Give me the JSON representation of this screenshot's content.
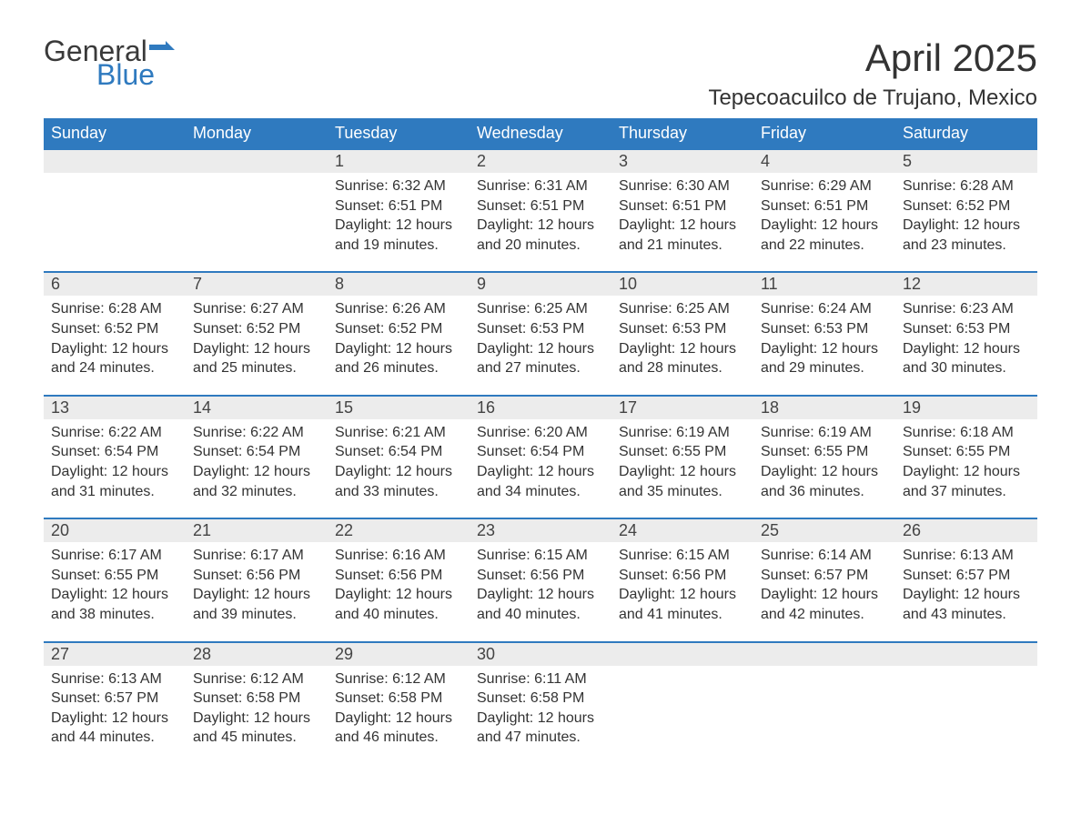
{
  "logo": {
    "word1": "General",
    "word2": "Blue",
    "brand_color": "#2f7abf"
  },
  "title": "April 2025",
  "location": "Tepecoacuilco de Trujano, Mexico",
  "colors": {
    "header_bg": "#2f7abf",
    "header_text": "#ffffff",
    "daynum_bg": "#ececec",
    "row_border": "#2f7abf",
    "text": "#333333"
  },
  "fonts": {
    "title_size_pt": 32,
    "location_size_pt": 18,
    "header_size_pt": 14,
    "body_size_pt": 12
  },
  "days_of_week": [
    "Sunday",
    "Monday",
    "Tuesday",
    "Wednesday",
    "Thursday",
    "Friday",
    "Saturday"
  ],
  "weeks": [
    [
      null,
      null,
      {
        "n": "1",
        "sunrise": "6:32 AM",
        "sunset": "6:51 PM",
        "daylight": "12 hours and 19 minutes."
      },
      {
        "n": "2",
        "sunrise": "6:31 AM",
        "sunset": "6:51 PM",
        "daylight": "12 hours and 20 minutes."
      },
      {
        "n": "3",
        "sunrise": "6:30 AM",
        "sunset": "6:51 PM",
        "daylight": "12 hours and 21 minutes."
      },
      {
        "n": "4",
        "sunrise": "6:29 AM",
        "sunset": "6:51 PM",
        "daylight": "12 hours and 22 minutes."
      },
      {
        "n": "5",
        "sunrise": "6:28 AM",
        "sunset": "6:52 PM",
        "daylight": "12 hours and 23 minutes."
      }
    ],
    [
      {
        "n": "6",
        "sunrise": "6:28 AM",
        "sunset": "6:52 PM",
        "daylight": "12 hours and 24 minutes."
      },
      {
        "n": "7",
        "sunrise": "6:27 AM",
        "sunset": "6:52 PM",
        "daylight": "12 hours and 25 minutes."
      },
      {
        "n": "8",
        "sunrise": "6:26 AM",
        "sunset": "6:52 PM",
        "daylight": "12 hours and 26 minutes."
      },
      {
        "n": "9",
        "sunrise": "6:25 AM",
        "sunset": "6:53 PM",
        "daylight": "12 hours and 27 minutes."
      },
      {
        "n": "10",
        "sunrise": "6:25 AM",
        "sunset": "6:53 PM",
        "daylight": "12 hours and 28 minutes."
      },
      {
        "n": "11",
        "sunrise": "6:24 AM",
        "sunset": "6:53 PM",
        "daylight": "12 hours and 29 minutes."
      },
      {
        "n": "12",
        "sunrise": "6:23 AM",
        "sunset": "6:53 PM",
        "daylight": "12 hours and 30 minutes."
      }
    ],
    [
      {
        "n": "13",
        "sunrise": "6:22 AM",
        "sunset": "6:54 PM",
        "daylight": "12 hours and 31 minutes."
      },
      {
        "n": "14",
        "sunrise": "6:22 AM",
        "sunset": "6:54 PM",
        "daylight": "12 hours and 32 minutes."
      },
      {
        "n": "15",
        "sunrise": "6:21 AM",
        "sunset": "6:54 PM",
        "daylight": "12 hours and 33 minutes."
      },
      {
        "n": "16",
        "sunrise": "6:20 AM",
        "sunset": "6:54 PM",
        "daylight": "12 hours and 34 minutes."
      },
      {
        "n": "17",
        "sunrise": "6:19 AM",
        "sunset": "6:55 PM",
        "daylight": "12 hours and 35 minutes."
      },
      {
        "n": "18",
        "sunrise": "6:19 AM",
        "sunset": "6:55 PM",
        "daylight": "12 hours and 36 minutes."
      },
      {
        "n": "19",
        "sunrise": "6:18 AM",
        "sunset": "6:55 PM",
        "daylight": "12 hours and 37 minutes."
      }
    ],
    [
      {
        "n": "20",
        "sunrise": "6:17 AM",
        "sunset": "6:55 PM",
        "daylight": "12 hours and 38 minutes."
      },
      {
        "n": "21",
        "sunrise": "6:17 AM",
        "sunset": "6:56 PM",
        "daylight": "12 hours and 39 minutes."
      },
      {
        "n": "22",
        "sunrise": "6:16 AM",
        "sunset": "6:56 PM",
        "daylight": "12 hours and 40 minutes."
      },
      {
        "n": "23",
        "sunrise": "6:15 AM",
        "sunset": "6:56 PM",
        "daylight": "12 hours and 40 minutes."
      },
      {
        "n": "24",
        "sunrise": "6:15 AM",
        "sunset": "6:56 PM",
        "daylight": "12 hours and 41 minutes."
      },
      {
        "n": "25",
        "sunrise": "6:14 AM",
        "sunset": "6:57 PM",
        "daylight": "12 hours and 42 minutes."
      },
      {
        "n": "26",
        "sunrise": "6:13 AM",
        "sunset": "6:57 PM",
        "daylight": "12 hours and 43 minutes."
      }
    ],
    [
      {
        "n": "27",
        "sunrise": "6:13 AM",
        "sunset": "6:57 PM",
        "daylight": "12 hours and 44 minutes."
      },
      {
        "n": "28",
        "sunrise": "6:12 AM",
        "sunset": "6:58 PM",
        "daylight": "12 hours and 45 minutes."
      },
      {
        "n": "29",
        "sunrise": "6:12 AM",
        "sunset": "6:58 PM",
        "daylight": "12 hours and 46 minutes."
      },
      {
        "n": "30",
        "sunrise": "6:11 AM",
        "sunset": "6:58 PM",
        "daylight": "12 hours and 47 minutes."
      },
      null,
      null,
      null
    ]
  ],
  "labels": {
    "sunrise": "Sunrise:",
    "sunset": "Sunset:",
    "daylight": "Daylight:"
  }
}
